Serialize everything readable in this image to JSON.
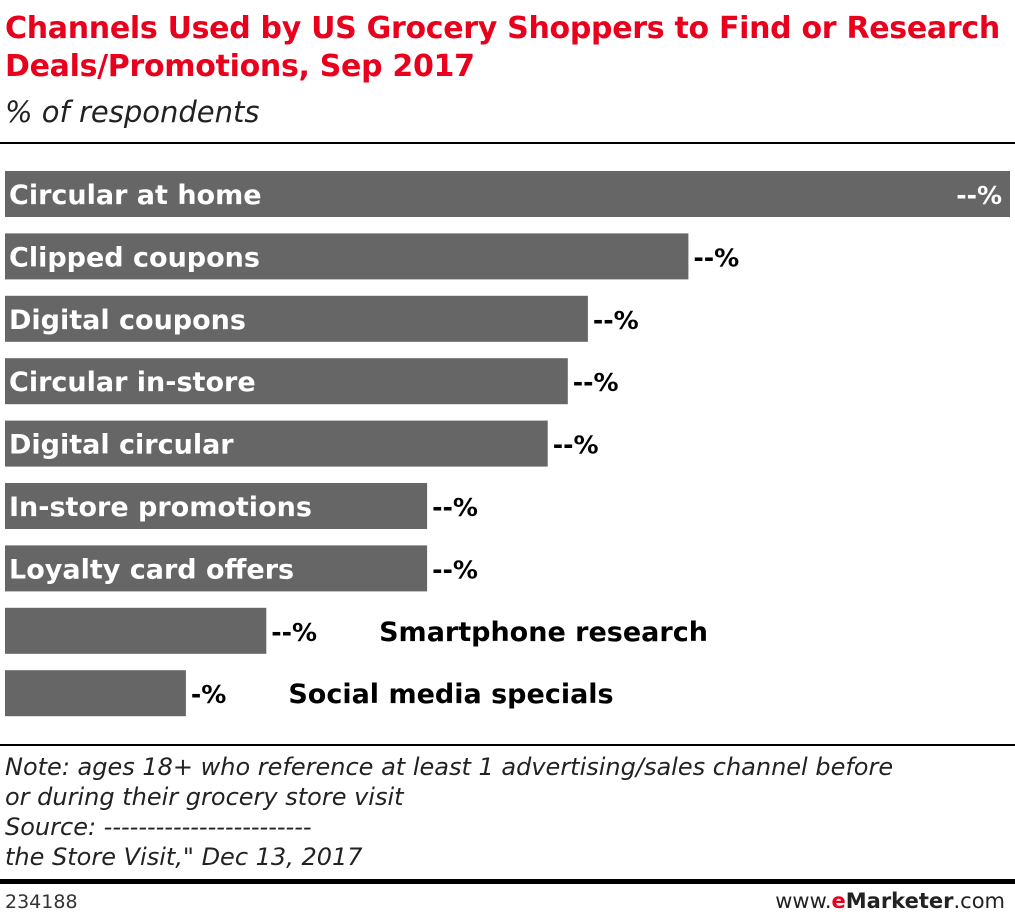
{
  "header": {
    "title": "Channels Used by US Grocery Shoppers to Find or Research Deals/Promotions, Sep 2017",
    "subtitle": "% of respondents"
  },
  "chart_data": {
    "type": "bar",
    "orientation": "horizontal",
    "categories": [
      "Circular at home",
      "Clipped coupons",
      "Digital coupons",
      "Circular in-store",
      "Digital circular",
      "In-store promotions",
      "Loyalty card offers",
      "Smartphone research",
      "Social media specials"
    ],
    "values": [
      100,
      68,
      58,
      56,
      54,
      42,
      42,
      26,
      18
    ],
    "value_labels": [
      "--%",
      "--%",
      "--%",
      "--%",
      "--%",
      "--%",
      "--%",
      "--%",
      "-%"
    ],
    "title": "Channels Used by US Grocery Shoppers to Find or Research Deals/Promotions, Sep 2017",
    "xlabel": "",
    "ylabel": "",
    "xlim": [
      0,
      100
    ],
    "grid": false,
    "legend": "none",
    "bar_color": "#666666"
  },
  "note": {
    "lines": [
      "Note: ages 18+ who reference at least 1 advertising/sales channel before",
      "or during their grocery store visit",
      "Source: ------------------------",
      "the Store Visit,\" Dec 13, 2017"
    ]
  },
  "footer": {
    "chart_id": "234188",
    "brand_prefix": "www.",
    "brand_e": "e",
    "brand_name": "Marketer",
    "brand_suffix": ".com"
  },
  "colors": {
    "title": "#e8001c",
    "bar": "#666666"
  }
}
